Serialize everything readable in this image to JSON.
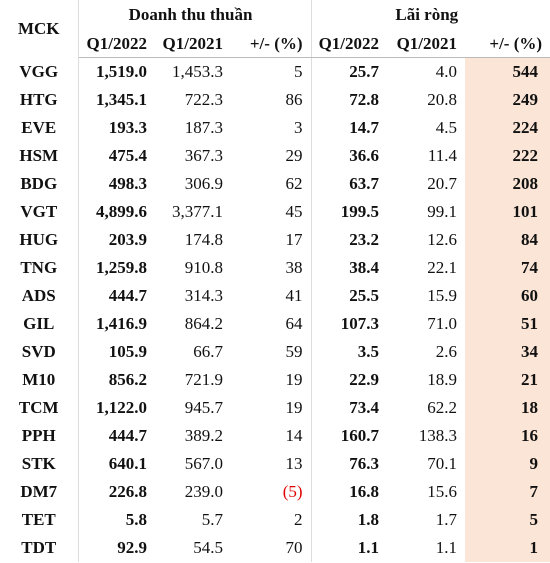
{
  "table": {
    "header": {
      "mck": "MCK",
      "groups": [
        "Doanh thu thuần",
        "Lãi ròng"
      ],
      "columns": [
        "Q1/2022",
        "Q1/2021",
        "+/- (%)",
        "Q1/2022",
        "Q1/2021",
        "+/- (%)"
      ]
    },
    "rows": [
      [
        "VGG",
        "1,519.0",
        "1,453.3",
        "5",
        "25.7",
        "4.0",
        "544"
      ],
      [
        "HTG",
        "1,345.1",
        "722.3",
        "86",
        "72.8",
        "20.8",
        "249"
      ],
      [
        "EVE",
        "193.3",
        "187.3",
        "3",
        "14.7",
        "4.5",
        "224"
      ],
      [
        "HSM",
        "475.4",
        "367.3",
        "29",
        "36.6",
        "11.4",
        "222"
      ],
      [
        "BDG",
        "498.3",
        "306.9",
        "62",
        "63.7",
        "20.7",
        "208"
      ],
      [
        "VGT",
        "4,899.6",
        "3,377.1",
        "45",
        "199.5",
        "99.1",
        "101"
      ],
      [
        "HUG",
        "203.9",
        "174.8",
        "17",
        "23.2",
        "12.6",
        "84"
      ],
      [
        "TNG",
        "1,259.8",
        "910.8",
        "38",
        "38.4",
        "22.1",
        "74"
      ],
      [
        "ADS",
        "444.7",
        "314.3",
        "41",
        "25.5",
        "15.9",
        "60"
      ],
      [
        "GIL",
        "1,416.9",
        "864.2",
        "64",
        "107.3",
        "71.0",
        "51"
      ],
      [
        "SVD",
        "105.9",
        "66.7",
        "59",
        "3.5",
        "2.6",
        "34"
      ],
      [
        "M10",
        "856.2",
        "721.9",
        "19",
        "22.9",
        "18.9",
        "21"
      ],
      [
        "TCM",
        "1,122.0",
        "945.7",
        "19",
        "73.4",
        "62.2",
        "18"
      ],
      [
        "PPH",
        "444.7",
        "389.2",
        "14",
        "160.7",
        "138.3",
        "16"
      ],
      [
        "STK",
        "640.1",
        "567.0",
        "13",
        "76.3",
        "70.1",
        "9"
      ],
      [
        "DM7",
        "226.8",
        "239.0",
        "(5)",
        "16.8",
        "15.6",
        "7"
      ],
      [
        "TET",
        "5.8",
        "5.7",
        "2",
        "1.8",
        "1.7",
        "5"
      ],
      [
        "TDT",
        "92.9",
        "54.5",
        "70",
        "1.1",
        "1.1",
        "1"
      ]
    ]
  }
}
